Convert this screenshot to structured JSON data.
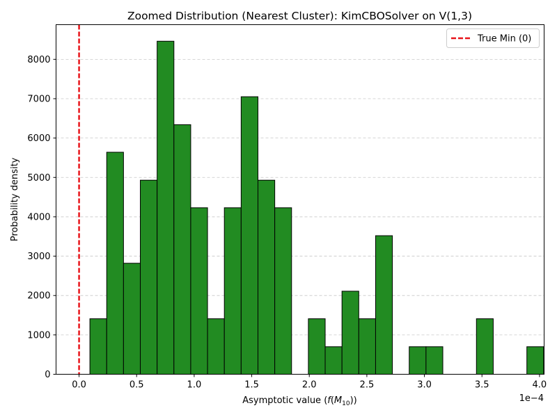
{
  "chart_data": {
    "type": "bar",
    "title": "Zoomed Distribution (Nearest Cluster): KimCBOSolver on V(1,3)",
    "xlabel_prefix": "Asymptotic value (",
    "xlabel_f": "f",
    "xlabel_M": "M",
    "xlabel_sub": "10",
    "xlabel_suffix": "))",
    "ylabel": "Probability density",
    "x_offset_label": "1e−4",
    "xlim": [
      -0.2,
      4.04
    ],
    "ylim": [
      0,
      8880
    ],
    "x_scale_note": "x values in units of 1e-4",
    "xticks": [
      {
        "value": 0.0,
        "label": "0.0"
      },
      {
        "value": 0.5,
        "label": "0.5"
      },
      {
        "value": 1.0,
        "label": "1.0"
      },
      {
        "value": 1.5,
        "label": "1.5"
      },
      {
        "value": 2.0,
        "label": "2.0"
      },
      {
        "value": 2.5,
        "label": "2.5"
      },
      {
        "value": 3.0,
        "label": "3.0"
      },
      {
        "value": 3.5,
        "label": "3.5"
      },
      {
        "value": 4.0,
        "label": "4.0"
      }
    ],
    "yticks": [
      {
        "value": 0,
        "label": "0"
      },
      {
        "value": 1000,
        "label": "1000"
      },
      {
        "value": 2000,
        "label": "2000"
      },
      {
        "value": 3000,
        "label": "3000"
      },
      {
        "value": 4000,
        "label": "4000"
      },
      {
        "value": 5000,
        "label": "5000"
      },
      {
        "value": 6000,
        "label": "6000"
      },
      {
        "value": 7000,
        "label": "7000"
      },
      {
        "value": 8000,
        "label": "8000"
      }
    ],
    "grid": "y-dashed",
    "bar_color": "#228b22",
    "bar_edge_color": "#000000",
    "bins": [
      {
        "x0": 0.094,
        "x1": 0.24,
        "value": 1410
      },
      {
        "x0": 0.24,
        "x1": 0.386,
        "value": 5640
      },
      {
        "x0": 0.386,
        "x1": 0.532,
        "value": 2820
      },
      {
        "x0": 0.532,
        "x1": 0.678,
        "value": 4930
      },
      {
        "x0": 0.678,
        "x1": 0.824,
        "value": 8460
      },
      {
        "x0": 0.824,
        "x1": 0.97,
        "value": 6340
      },
      {
        "x0": 0.97,
        "x1": 1.116,
        "value": 4230
      },
      {
        "x0": 1.116,
        "x1": 1.262,
        "value": 1410
      },
      {
        "x0": 1.262,
        "x1": 1.408,
        "value": 4230
      },
      {
        "x0": 1.408,
        "x1": 1.554,
        "value": 7050
      },
      {
        "x0": 1.554,
        "x1": 1.7,
        "value": 4930
      },
      {
        "x0": 1.7,
        "x1": 1.846,
        "value": 4230
      },
      {
        "x0": 1.846,
        "x1": 1.992,
        "value": 0
      },
      {
        "x0": 1.992,
        "x1": 2.138,
        "value": 1410
      },
      {
        "x0": 2.138,
        "x1": 2.284,
        "value": 700
      },
      {
        "x0": 2.284,
        "x1": 2.43,
        "value": 2110
      },
      {
        "x0": 2.43,
        "x1": 2.576,
        "value": 1410
      },
      {
        "x0": 2.576,
        "x1": 2.722,
        "value": 3520
      },
      {
        "x0": 2.722,
        "x1": 2.868,
        "value": 0
      },
      {
        "x0": 2.868,
        "x1": 3.014,
        "value": 700
      },
      {
        "x0": 3.014,
        "x1": 3.16,
        "value": 700
      },
      {
        "x0": 3.16,
        "x1": 3.306,
        "value": 0
      },
      {
        "x0": 3.306,
        "x1": 3.452,
        "value": 0
      },
      {
        "x0": 3.452,
        "x1": 3.598,
        "value": 1410
      },
      {
        "x0": 3.598,
        "x1": 3.744,
        "value": 0
      },
      {
        "x0": 3.744,
        "x1": 3.89,
        "value": 0
      },
      {
        "x0": 3.89,
        "x1": 4.036,
        "value": 700
      }
    ],
    "reference_line": {
      "x": 0,
      "label": "True Min (0)",
      "color": "#e8141a",
      "style": "dashed"
    },
    "legend": {
      "placement": "top-right",
      "entries": [
        "True Min (0)"
      ]
    }
  }
}
